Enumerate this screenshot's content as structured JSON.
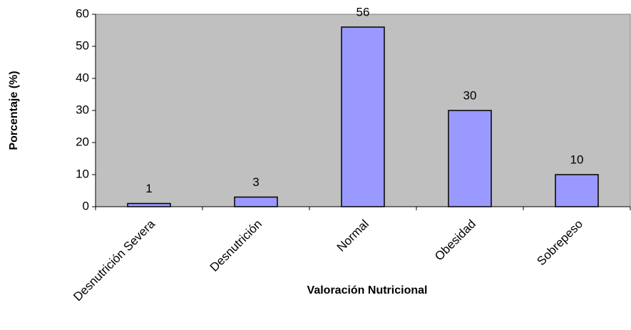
{
  "chart_data": {
    "type": "bar",
    "x_label": "Valoración Nutricional",
    "y_label": "Porcentaje (%)",
    "categories": [
      "Desnutrición Severa",
      "Desnutrición",
      "Normal",
      "Obesidad",
      "Sobrepeso"
    ],
    "values": [
      1,
      3,
      56,
      30,
      10
    ],
    "color": "#9999ff",
    "plot_background": "#c0c0c0",
    "ylim": [
      0,
      60
    ],
    "yticks": [
      0,
      10,
      20,
      30,
      40,
      50,
      60
    ]
  }
}
